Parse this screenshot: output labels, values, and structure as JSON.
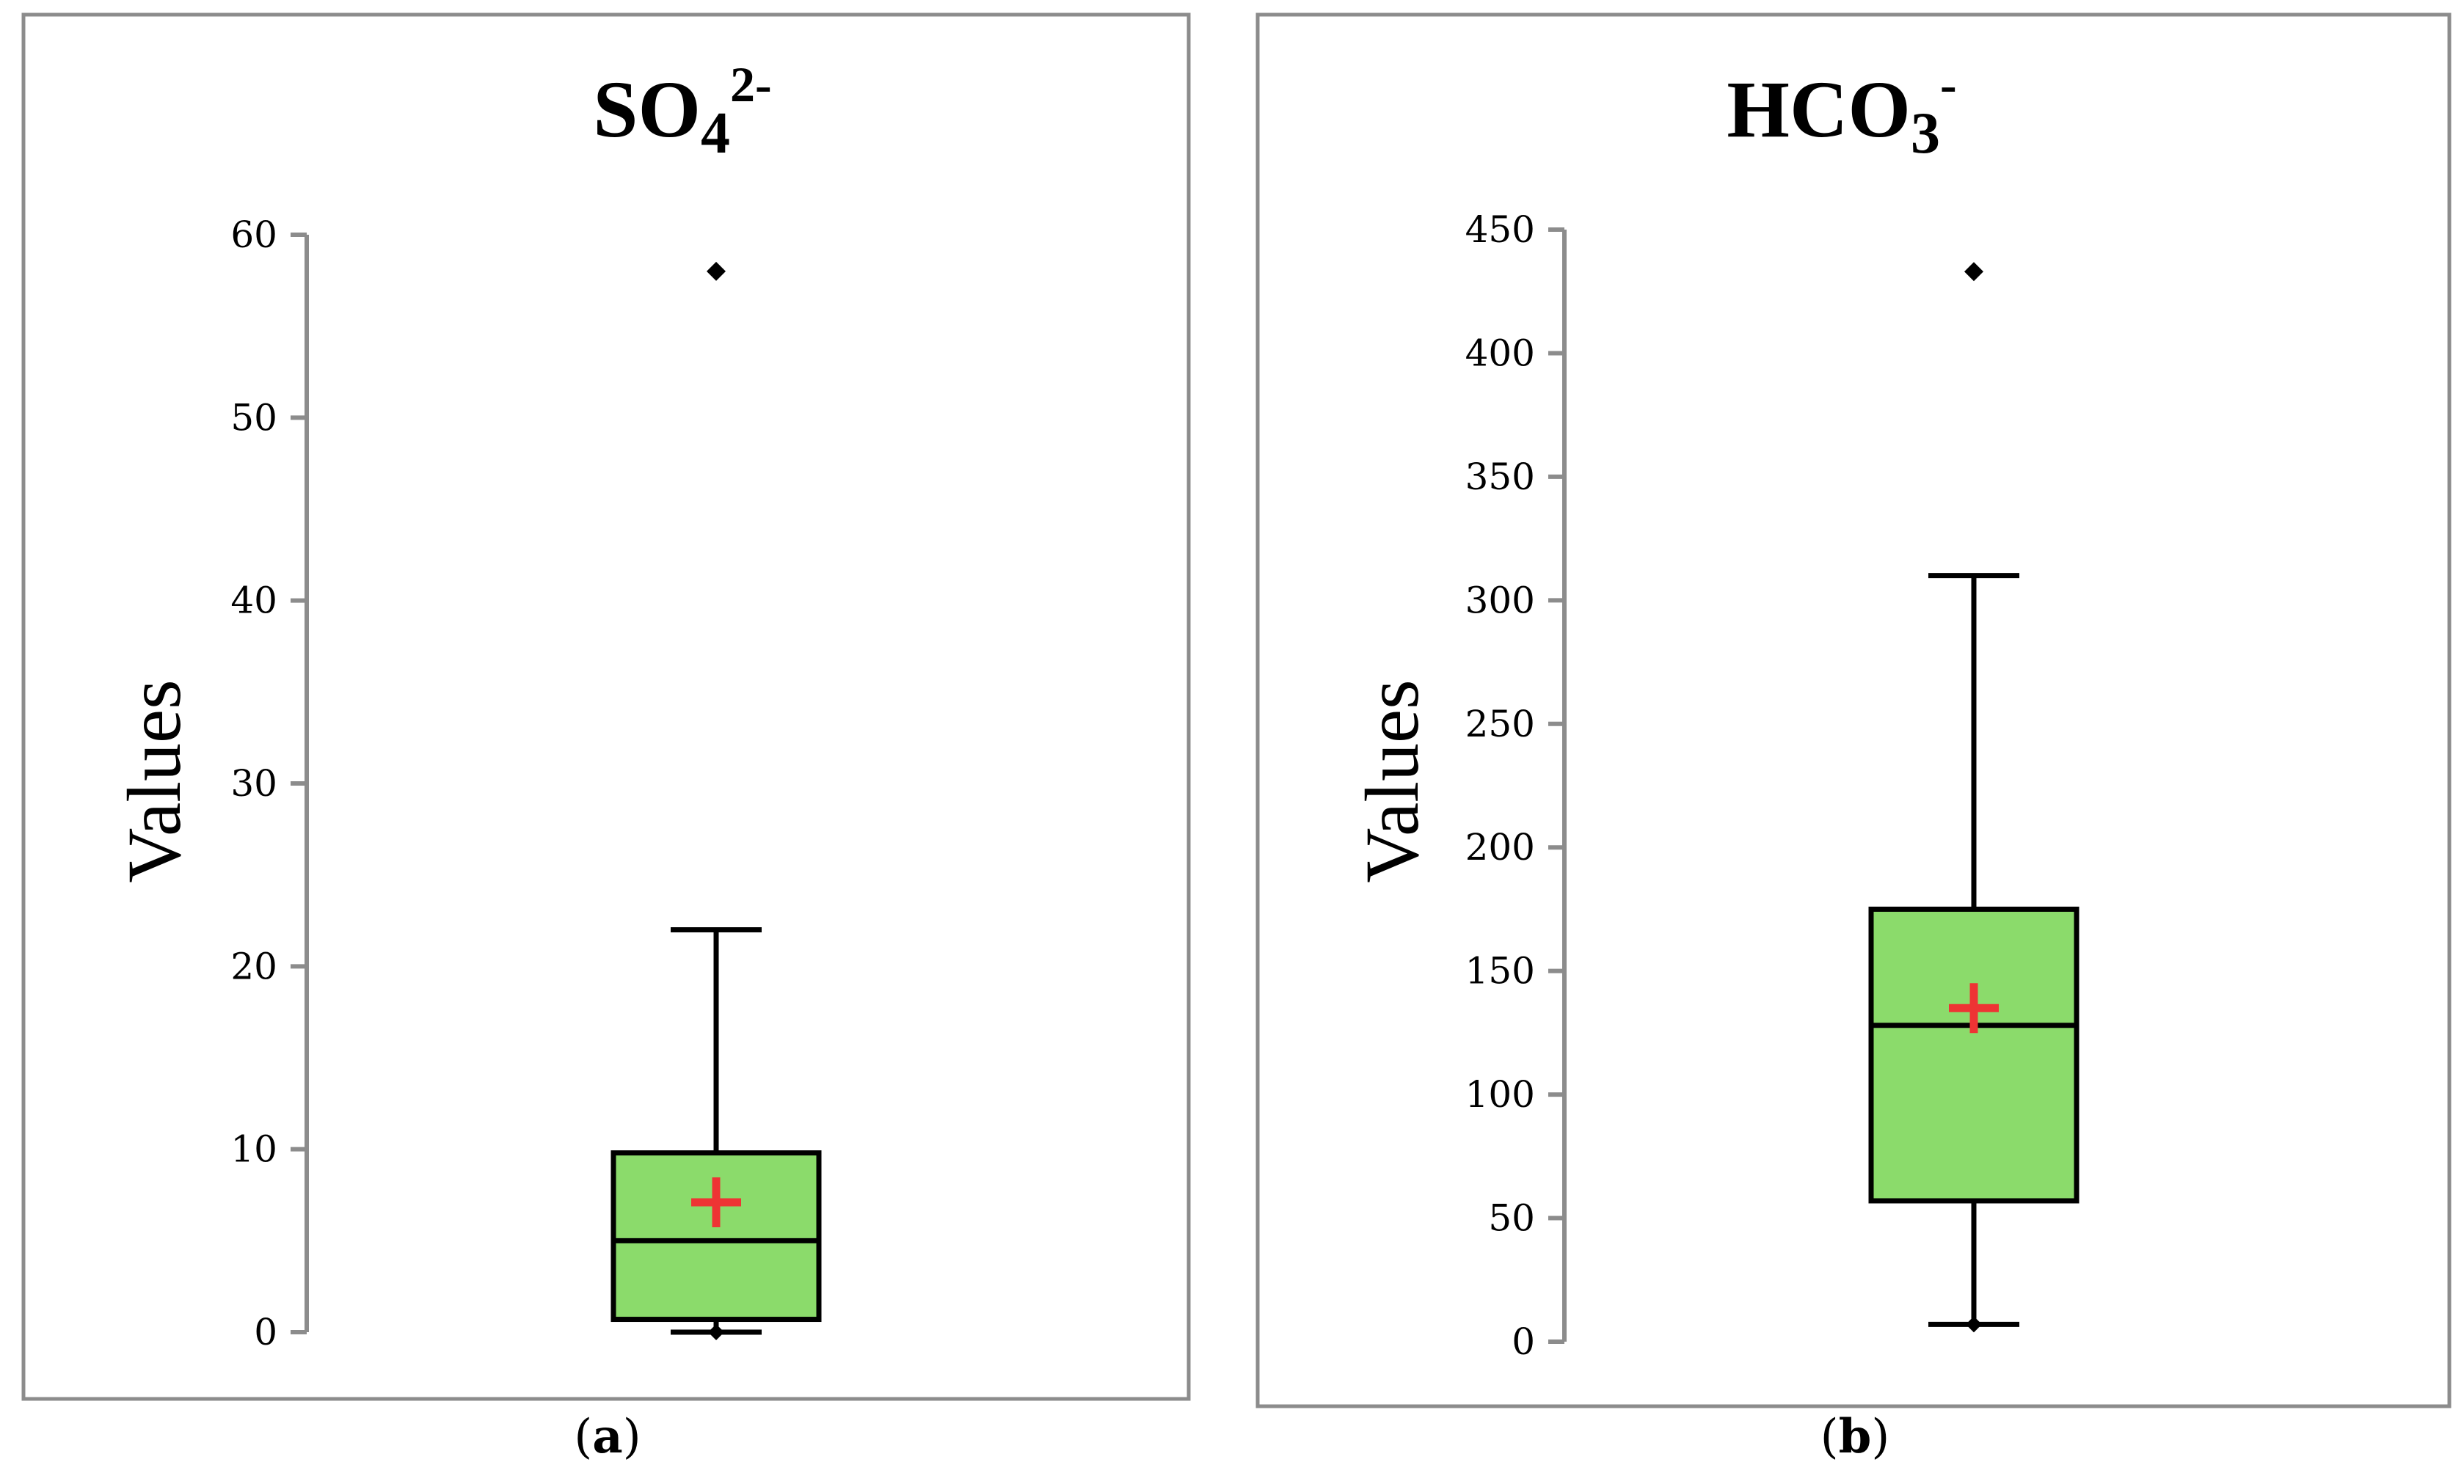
{
  "chart_data": [
    {
      "type": "boxplot",
      "title": "SO₄²⁻",
      "title_main": "SO",
      "title_sub": "4",
      "title_sup": "2-",
      "ylabel": "Values",
      "ylim": [
        0,
        60
      ],
      "yticks": [
        0,
        10,
        20,
        30,
        40,
        50,
        60
      ],
      "box": {
        "whisker_low": 0,
        "q1": 0.7,
        "median": 5,
        "q3": 9.8,
        "whisker_high": 22,
        "mean": 7.1,
        "outliers": [
          58
        ]
      },
      "caption_open": "(",
      "caption_letter": "a",
      "caption_close": ")"
    },
    {
      "type": "boxplot",
      "title": "HCO₃⁻",
      "title_main": "HCO",
      "title_sub": "3",
      "title_sup": "-",
      "ylabel": "Values",
      "ylim": [
        0,
        450
      ],
      "yticks": [
        0,
        50,
        100,
        150,
        200,
        250,
        300,
        350,
        400,
        450
      ],
      "box": {
        "whisker_low": 7,
        "q1": 57,
        "median": 128,
        "q3": 175,
        "whisker_high": 310,
        "mean": 135,
        "outliers": [
          433
        ]
      },
      "caption_open": "(",
      "caption_letter": "b",
      "caption_close": ")"
    }
  ],
  "colors": {
    "box_fill": "#8BDB6B",
    "box_stroke": "#000000",
    "mean_marker": "#EE3434",
    "axis": "#8C8C8C",
    "frame": "#8C8C8C"
  }
}
